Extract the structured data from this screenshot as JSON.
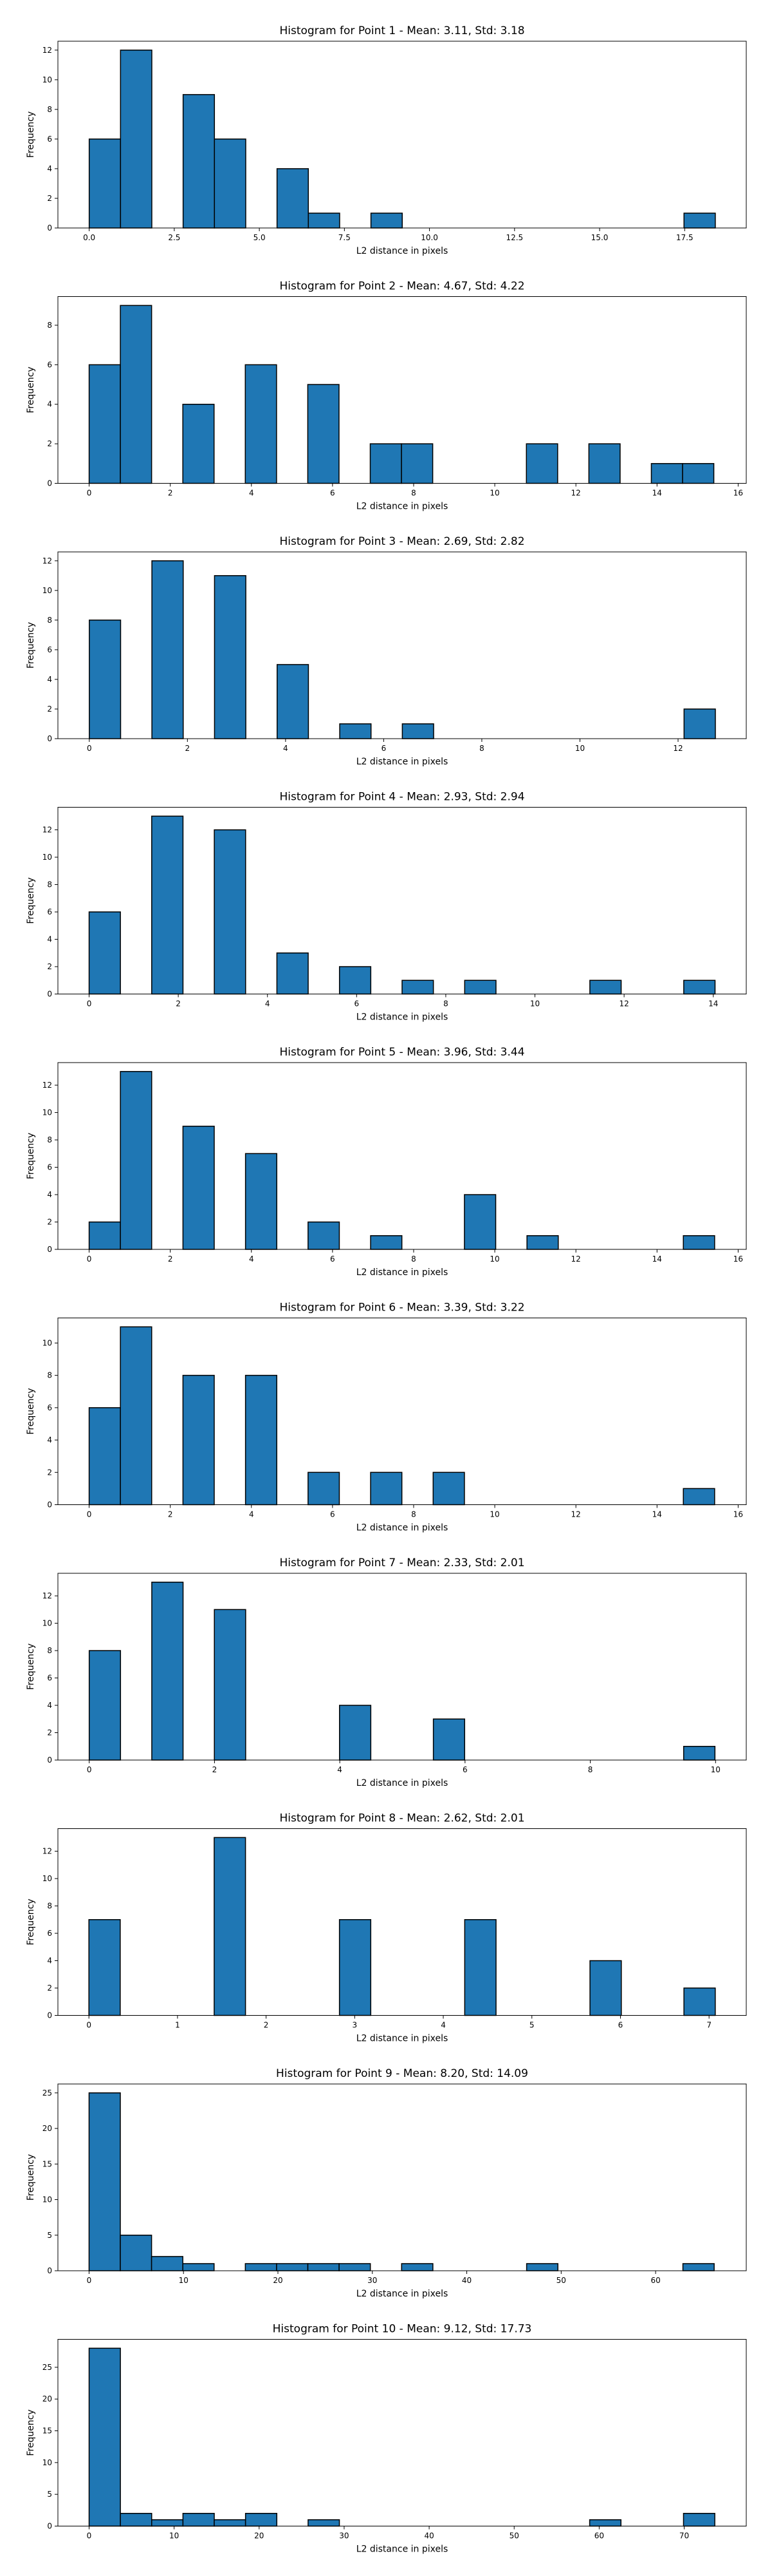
{
  "chart_data": [
    {
      "type": "bar",
      "title": "Histogram for Point 1 - Mean: 3.11, Std: 3.18",
      "xlabel": "L2 distance in pixels",
      "ylabel": "Frequency",
      "xlim": [
        -0.92,
        19.31
      ],
      "ylim": [
        0,
        12.6
      ],
      "xticks": [
        "0.0",
        "2.5",
        "5.0",
        "7.5",
        "10.0",
        "12.5",
        "15.0",
        "17.5"
      ],
      "xtick_values": [
        0,
        2.5,
        5,
        7.5,
        10,
        12.5,
        15,
        17.5
      ],
      "yticks": [
        0,
        2,
        4,
        6,
        8,
        10,
        12
      ],
      "bin_start": 0.0,
      "bin_width": 0.92,
      "counts": [
        6,
        12,
        0,
        9,
        6,
        0,
        4,
        1,
        0,
        1,
        0,
        0,
        0,
        0,
        0,
        0,
        0,
        0,
        0,
        1
      ]
    },
    {
      "type": "bar",
      "title": "Histogram for Point 2 - Mean: 4.67, Std: 4.22",
      "xlabel": "L2 distance in pixels",
      "ylabel": "Frequency",
      "xlim": [
        -0.77,
        16.2
      ],
      "ylim": [
        0,
        9.45
      ],
      "xticks": [
        "0",
        "2",
        "4",
        "6",
        "8",
        "10",
        "12",
        "14",
        "16"
      ],
      "xtick_values": [
        0,
        2,
        4,
        6,
        8,
        10,
        12,
        14,
        16
      ],
      "yticks": [
        0,
        2,
        4,
        6,
        8
      ],
      "bin_start": 0.0,
      "bin_width": 0.77,
      "counts": [
        6,
        9,
        0,
        4,
        0,
        6,
        0,
        5,
        0,
        2,
        2,
        0,
        0,
        0,
        2,
        0,
        2,
        0,
        1,
        1
      ]
    },
    {
      "type": "bar",
      "title": "Histogram for Point 3 - Mean: 2.69, Std: 2.82",
      "xlabel": "L2 distance in pixels",
      "ylabel": "Frequency",
      "xlim": [
        -0.64,
        13.39
      ],
      "ylim": [
        0,
        12.6
      ],
      "xticks": [
        "0",
        "2",
        "4",
        "6",
        "8",
        "10",
        "12"
      ],
      "xtick_values": [
        0,
        2,
        4,
        6,
        8,
        10,
        12
      ],
      "yticks": [
        0,
        2,
        4,
        6,
        8,
        10,
        12
      ],
      "bin_start": 0.0,
      "bin_width": 0.638,
      "counts": [
        8,
        0,
        12,
        0,
        11,
        0,
        5,
        0,
        1,
        0,
        1,
        0,
        0,
        0,
        0,
        0,
        0,
        0,
        0,
        2
      ]
    },
    {
      "type": "bar",
      "title": "Histogram for Point 4 - Mean: 2.93, Std: 2.94",
      "xlabel": "L2 distance in pixels",
      "ylabel": "Frequency",
      "xlim": [
        -0.7,
        14.74
      ],
      "ylim": [
        0,
        13.65
      ],
      "xticks": [
        "0",
        "2",
        "4",
        "6",
        "8",
        "10",
        "12",
        "14"
      ],
      "xtick_values": [
        0,
        2,
        4,
        6,
        8,
        10,
        12,
        14
      ],
      "yticks": [
        0,
        2,
        4,
        6,
        8,
        10,
        12
      ],
      "bin_start": 0.0,
      "bin_width": 0.702,
      "counts": [
        6,
        0,
        13,
        0,
        12,
        0,
        3,
        0,
        2,
        0,
        1,
        0,
        1,
        0,
        0,
        0,
        1,
        0,
        0,
        1
      ]
    },
    {
      "type": "bar",
      "title": "Histogram for Point 5 - Mean: 3.96, Std: 3.44",
      "xlabel": "L2 distance in pixels",
      "ylabel": "Frequency",
      "xlim": [
        -0.77,
        16.2
      ],
      "ylim": [
        0,
        13.65
      ],
      "xticks": [
        "0",
        "2",
        "4",
        "6",
        "8",
        "10",
        "12",
        "14",
        "16"
      ],
      "xtick_values": [
        0,
        2,
        4,
        6,
        8,
        10,
        12,
        14,
        16
      ],
      "yticks": [
        0,
        2,
        4,
        6,
        8,
        10,
        12
      ],
      "bin_start": 0.0,
      "bin_width": 0.771,
      "counts": [
        2,
        13,
        0,
        9,
        0,
        7,
        0,
        2,
        0,
        1,
        0,
        0,
        4,
        0,
        1,
        0,
        0,
        0,
        0,
        1
      ]
    },
    {
      "type": "bar",
      "title": "Histogram for Point 6 - Mean: 3.39, Std: 3.22",
      "xlabel": "L2 distance in pixels",
      "ylabel": "Frequency",
      "xlim": [
        -0.77,
        16.2
      ],
      "ylim": [
        0,
        11.55
      ],
      "xticks": [
        "0",
        "2",
        "4",
        "6",
        "8",
        "10",
        "12",
        "14",
        "16"
      ],
      "xtick_values": [
        0,
        2,
        4,
        6,
        8,
        10,
        12,
        14,
        16
      ],
      "yticks": [
        0,
        2,
        4,
        6,
        8,
        10
      ],
      "bin_start": 0.0,
      "bin_width": 0.771,
      "counts": [
        6,
        11,
        0,
        8,
        0,
        8,
        0,
        2,
        0,
        2,
        0,
        2,
        0,
        0,
        0,
        0,
        0,
        0,
        0,
        1
      ]
    },
    {
      "type": "bar",
      "title": "Histogram for Point 7 - Mean: 2.33, Std: 2.01",
      "xlabel": "L2 distance in pixels",
      "ylabel": "Frequency",
      "xlim": [
        -0.5,
        10.49
      ],
      "ylim": [
        0,
        13.65
      ],
      "xticks": [
        "0",
        "2",
        "4",
        "6",
        "8",
        "10"
      ],
      "xtick_values": [
        0,
        2,
        4,
        6,
        8,
        10
      ],
      "yticks": [
        0,
        2,
        4,
        6,
        8,
        10,
        12
      ],
      "bin_start": 0.0,
      "bin_width": 0.4995,
      "counts": [
        8,
        0,
        13,
        0,
        11,
        0,
        0,
        0,
        4,
        0,
        0,
        3,
        0,
        0,
        0,
        0,
        0,
        0,
        0,
        1
      ]
    },
    {
      "type": "bar",
      "title": "Histogram for Point 8 - Mean: 2.62, Std: 2.01",
      "xlabel": "L2 distance in pixels",
      "ylabel": "Frequency",
      "xlim": [
        -0.35,
        7.42
      ],
      "ylim": [
        0,
        13.65
      ],
      "xticks": [
        "0",
        "1",
        "2",
        "3",
        "4",
        "5",
        "6",
        "7"
      ],
      "xtick_values": [
        0,
        1,
        2,
        3,
        4,
        5,
        6,
        7
      ],
      "yticks": [
        0,
        2,
        4,
        6,
        8,
        10,
        12
      ],
      "bin_start": 0.0,
      "bin_width": 0.3535,
      "counts": [
        7,
        0,
        0,
        0,
        13,
        0,
        0,
        0,
        7,
        0,
        0,
        0,
        7,
        0,
        0,
        0,
        4,
        0,
        0,
        2
      ]
    },
    {
      "type": "bar",
      "title": "Histogram for Point 9 - Mean: 8.20, Std: 14.09",
      "xlabel": "L2 distance in pixels",
      "ylabel": "Frequency",
      "xlim": [
        -3.3,
        69.6
      ],
      "ylim": [
        0,
        26.25
      ],
      "xticks": [
        "0",
        "10",
        "20",
        "30",
        "40",
        "50",
        "60"
      ],
      "xtick_values": [
        0,
        10,
        20,
        30,
        40,
        50,
        60
      ],
      "yticks": [
        0,
        5,
        10,
        15,
        20,
        25
      ],
      "bin_start": 0.0,
      "bin_width": 3.31,
      "counts": [
        25,
        5,
        2,
        1,
        0,
        1,
        1,
        1,
        1,
        0,
        1,
        0,
        0,
        0,
        1,
        0,
        0,
        0,
        0,
        1
      ]
    },
    {
      "type": "bar",
      "title": "Histogram for Point 10 - Mean: 9.12, Std: 17.73",
      "xlabel": "L2 distance in pixels",
      "ylabel": "Frequency",
      "xlim": [
        -3.67,
        77.3
      ],
      "ylim": [
        0,
        29.4
      ],
      "xticks": [
        "0",
        "10",
        "20",
        "30",
        "40",
        "50",
        "60",
        "70"
      ],
      "xtick_values": [
        0,
        10,
        20,
        30,
        40,
        50,
        60,
        70
      ],
      "yticks": [
        0,
        5,
        10,
        15,
        20,
        25
      ],
      "bin_start": 0.0,
      "bin_width": 3.68,
      "counts": [
        28,
        2,
        1,
        2,
        1,
        2,
        0,
        1,
        0,
        0,
        0,
        0,
        0,
        0,
        0,
        0,
        1,
        0,
        0,
        2
      ]
    }
  ]
}
